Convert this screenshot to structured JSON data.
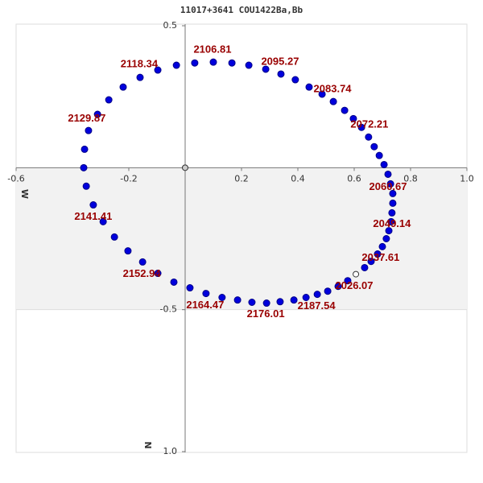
{
  "chart_data": {
    "type": "scatter",
    "title": "11017+3641 COU1422Ba,Bb",
    "xlabel": "W",
    "ylabel": "N",
    "xlim": [
      -0.6,
      1.0
    ],
    "ylim": [
      -1.0,
      0.5
    ],
    "xticks": [
      -0.6,
      -0.2,
      0.2,
      0.4,
      0.6,
      0.8,
      {
        "value": 1.0,
        "label": "1.0"
      }
    ],
    "yticks": [
      0.5,
      -0.5,
      {
        "value": -1.0,
        "label": "1.0"
      }
    ],
    "series": [
      {
        "name": "orbit",
        "color": "#0000dd",
        "x": [
          0.034,
          0.1,
          0.166,
          0.226,
          0.286,
          0.34,
          0.391,
          0.44,
          0.486,
          0.526,
          0.566,
          0.597,
          0.626,
          0.651,
          0.671,
          0.689,
          0.706,
          0.72,
          0.729,
          0.737,
          0.737,
          0.734,
          0.731,
          0.723,
          0.714,
          0.7,
          0.683,
          0.66,
          0.637,
          0.577,
          0.543,
          0.506,
          0.469,
          0.429,
          0.386,
          0.337,
          0.289,
          0.237,
          0.186,
          0.131,
          0.074,
          0.017,
          -0.04,
          -0.097,
          -0.151,
          -0.203,
          -0.251,
          -0.291,
          -0.326,
          -0.351,
          -0.36,
          -0.357,
          -0.343,
          -0.311,
          -0.271,
          -0.22,
          -0.16,
          -0.097,
          -0.031
        ],
        "values": [
          0.369,
          0.372,
          0.369,
          0.361,
          0.347,
          0.33,
          0.31,
          0.284,
          0.259,
          0.233,
          0.202,
          0.173,
          0.142,
          0.108,
          0.074,
          0.043,
          0.011,
          -0.023,
          -0.057,
          -0.091,
          -0.125,
          -0.159,
          -0.19,
          -0.222,
          -0.25,
          -0.278,
          -0.304,
          -0.33,
          -0.352,
          -0.398,
          -0.418,
          -0.435,
          -0.446,
          -0.457,
          -0.466,
          -0.472,
          -0.477,
          -0.474,
          -0.466,
          -0.457,
          -0.443,
          -0.423,
          -0.403,
          -0.372,
          -0.332,
          -0.293,
          -0.244,
          -0.19,
          -0.131,
          -0.065,
          0,
          0.065,
          0.131,
          0.188,
          0.239,
          0.284,
          0.318,
          0.344,
          0.361
        ]
      },
      {
        "name": "current",
        "color": "#ffffff",
        "x": [
          0.606
        ],
        "values": [
          -0.375
        ]
      },
      {
        "name": "primary",
        "color": "#cccccc",
        "x": [
          0
        ],
        "values": [
          0
        ]
      }
    ],
    "annotations": [
      {
        "text": "2106.81",
        "x": 0.097,
        "y": 0.415
      },
      {
        "text": "2095.27",
        "x": 0.337,
        "y": 0.372
      },
      {
        "text": "2083.74",
        "x": 0.523,
        "y": 0.276
      },
      {
        "text": "2072.21",
        "x": 0.654,
        "y": 0.151
      },
      {
        "text": "2060.67",
        "x": 0.72,
        "y": -0.068
      },
      {
        "text": "2049.14",
        "x": 0.734,
        "y": -0.199
      },
      {
        "text": "2037.61",
        "x": 0.694,
        "y": -0.318
      },
      {
        "text": "2026.07",
        "x": 0.6,
        "y": -0.418
      },
      {
        "text": "2187.54",
        "x": 0.466,
        "y": -0.489
      },
      {
        "text": "2176.01",
        "x": 0.286,
        "y": -0.517
      },
      {
        "text": "2164.47",
        "x": 0.071,
        "y": -0.486
      },
      {
        "text": "2152.94",
        "x": -0.154,
        "y": -0.375
      },
      {
        "text": "2141.41",
        "x": -0.326,
        "y": -0.173
      },
      {
        "text": "2129.87",
        "x": -0.349,
        "y": 0.173
      },
      {
        "text": "2118.34",
        "x": -0.163,
        "y": 0.364
      }
    ],
    "annotation_color": "#990000"
  }
}
